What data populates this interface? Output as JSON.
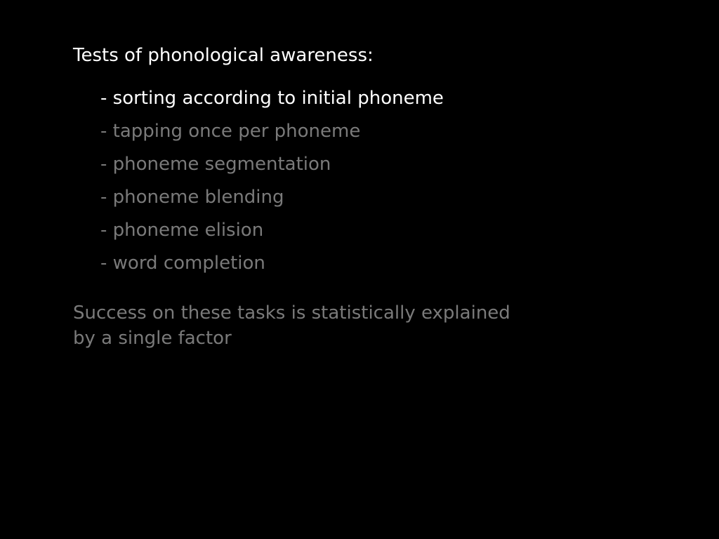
{
  "slide": {
    "title": "Tests of phonological awareness:",
    "bullets": [
      {
        "text": "- sorting according to initial phoneme",
        "state": "active"
      },
      {
        "text": "- tapping once per phoneme",
        "state": "dim"
      },
      {
        "text": "- phoneme segmentation",
        "state": "dim"
      },
      {
        "text": "- phoneme blending",
        "state": "dim"
      },
      {
        "text": "- phoneme elision",
        "state": "dim"
      },
      {
        "text": "- word completion",
        "state": "dim"
      }
    ],
    "summary_lines": [
      "Success on these tasks is statistically explained",
      "by a single factor"
    ]
  },
  "colors": {
    "background": "#000000",
    "active_text": "#ffffff",
    "dim_text": "#7a7a7a"
  }
}
